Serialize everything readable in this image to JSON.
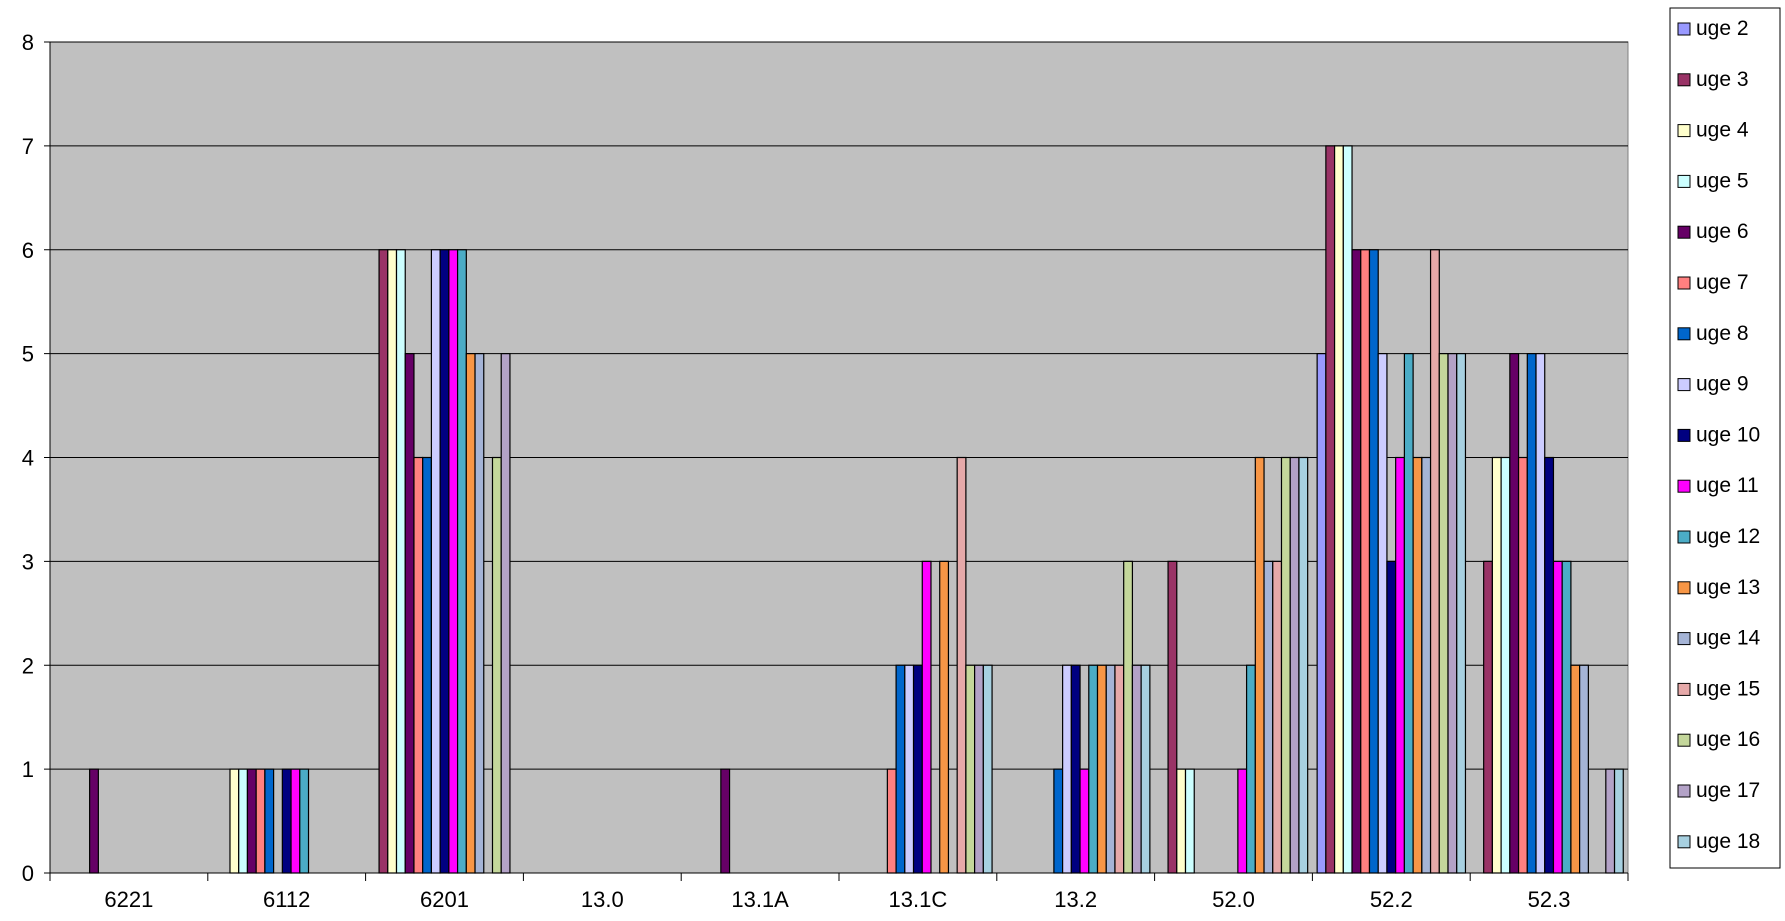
{
  "chart_data": {
    "type": "bar",
    "title": "",
    "xlabel": "",
    "ylabel": "",
    "ylim": [
      0,
      8
    ],
    "yticks": [
      0,
      1,
      2,
      3,
      4,
      5,
      6,
      7,
      8
    ],
    "grid": true,
    "legend_position": "right",
    "plot_background": "#c0c0c0",
    "categories": [
      "6221",
      "6112",
      "6201",
      "13.0",
      "13.1A",
      "13.1C",
      "13.2",
      "52.0",
      "52.2",
      "52.3"
    ],
    "series": [
      {
        "name": "uge 2",
        "color": "#9999ff",
        "values": [
          0,
          0,
          0,
          0,
          0,
          0,
          0,
          0,
          5,
          0
        ]
      },
      {
        "name": "uge 3",
        "color": "#993366",
        "values": [
          0,
          0,
          6,
          0,
          0,
          0,
          0,
          3,
          7,
          3
        ]
      },
      {
        "name": "uge 4",
        "color": "#ffffcc",
        "values": [
          0,
          1,
          6,
          0,
          0,
          0,
          0,
          1,
          7,
          4
        ]
      },
      {
        "name": "uge 5",
        "color": "#ccffff",
        "values": [
          0,
          1,
          6,
          0,
          0,
          0,
          0,
          1,
          7,
          4
        ]
      },
      {
        "name": "uge 6",
        "color": "#660066",
        "values": [
          1,
          1,
          5,
          0,
          1,
          0,
          0,
          0,
          6,
          5
        ]
      },
      {
        "name": "uge 7",
        "color": "#ff8080",
        "values": [
          0,
          1,
          4,
          0,
          0,
          1,
          0,
          0,
          6,
          4
        ]
      },
      {
        "name": "uge 8",
        "color": "#0066cc",
        "values": [
          0,
          1,
          4,
          0,
          0,
          2,
          1,
          0,
          6,
          5
        ]
      },
      {
        "name": "uge 9",
        "color": "#ccccff",
        "values": [
          0,
          0,
          6,
          0,
          0,
          2,
          2,
          0,
          5,
          5
        ]
      },
      {
        "name": "uge 10",
        "color": "#000080",
        "values": [
          0,
          1,
          6,
          0,
          0,
          2,
          2,
          0,
          3,
          4
        ]
      },
      {
        "name": "uge 11",
        "color": "#ff00ff",
        "values": [
          0,
          1,
          6,
          0,
          0,
          3,
          1,
          1,
          4,
          3
        ]
      },
      {
        "name": "uge 12",
        "color": "#4bacc6",
        "values": [
          0,
          1,
          6,
          0,
          0,
          0,
          2,
          2,
          5,
          3
        ]
      },
      {
        "name": "uge 13",
        "color": "#f79646",
        "values": [
          0,
          0,
          5,
          0,
          0,
          3,
          2,
          4,
          4,
          2
        ]
      },
      {
        "name": "uge 14",
        "color": "#a5b4d6",
        "values": [
          0,
          0,
          5,
          0,
          0,
          0,
          2,
          3,
          4,
          2
        ]
      },
      {
        "name": "uge 15",
        "color": "#e6a9a9",
        "values": [
          0,
          0,
          0,
          0,
          0,
          4,
          2,
          3,
          6,
          0
        ]
      },
      {
        "name": "uge 16",
        "color": "#c4d79b",
        "values": [
          0,
          0,
          4,
          0,
          0,
          2,
          3,
          4,
          5,
          0
        ]
      },
      {
        "name": "uge 17",
        "color": "#b3a2c7",
        "values": [
          0,
          0,
          5,
          0,
          0,
          2,
          2,
          4,
          5,
          1
        ]
      },
      {
        "name": "uge 18",
        "color": "#a7d0e0",
        "values": [
          0,
          0,
          0,
          0,
          0,
          2,
          2,
          4,
          5,
          1
        ]
      }
    ]
  }
}
